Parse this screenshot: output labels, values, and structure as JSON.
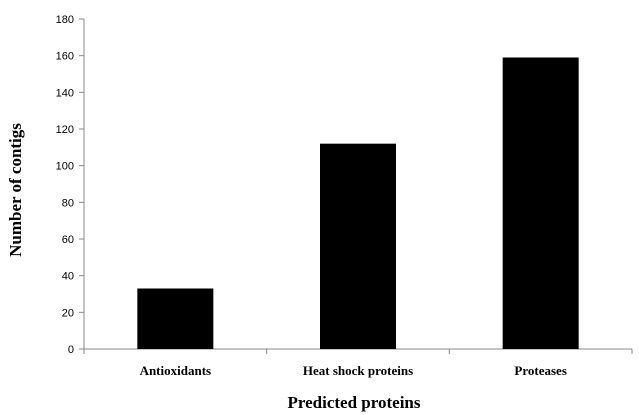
{
  "chart_data": {
    "type": "bar",
    "categories": [
      "Antioxidants",
      "Heat shock proteins",
      "Proteases"
    ],
    "values": [
      33,
      112,
      159
    ],
    "title": "",
    "xlabel": "Predicted proteins",
    "ylabel": "Number of contigs",
    "ylim": [
      0,
      180
    ],
    "yticks": [
      0,
      20,
      40,
      60,
      80,
      100,
      120,
      140,
      160,
      180
    ],
    "grid": false,
    "legend": "none",
    "bar_color": "#000000",
    "axis_color": "#888888"
  }
}
